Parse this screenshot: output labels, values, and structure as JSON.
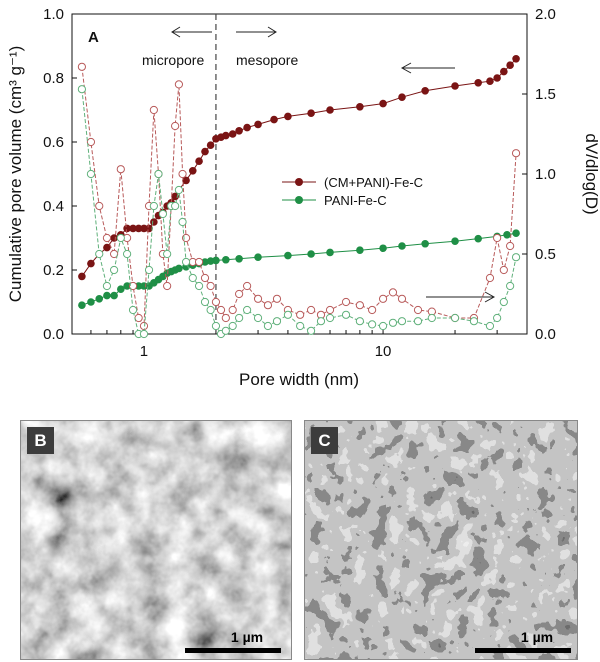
{
  "colors": {
    "series1": "#7a1414",
    "series2": "#1f8f46",
    "series1_open": "#b85a5a",
    "series2_open": "#5fb07a"
  },
  "chart_data": {
    "type": "scatter",
    "panel_label": "A",
    "xlabel": "Pore width (nm)",
    "ylabel": "Cumulative pore volume (cm³ g⁻¹)",
    "ylabel_right": "dV/dlog(D)",
    "x_scale": "log",
    "xlim": [
      0.5,
      40
    ],
    "ylim": [
      0,
      1.0
    ],
    "ylim_right": [
      0,
      2.0
    ],
    "x_ticks": [
      1,
      10
    ],
    "y_ticks": [
      "0.0",
      "0.2",
      "0.4",
      "0.6",
      "0.8",
      "1.0"
    ],
    "y_ticks_right": [
      "0.0",
      "0.5",
      "1.0",
      "1.5",
      "2.0"
    ],
    "region_divider_x": 2.0,
    "region_labels": {
      "left": "micropore",
      "right": "mesopore"
    },
    "legend_position": "center-right",
    "series": [
      {
        "name": "(CM+PANI)-Fe-C",
        "axis": "left",
        "marker": "filled",
        "x": [
          0.55,
          0.6,
          0.65,
          0.7,
          0.75,
          0.8,
          0.85,
          0.9,
          0.95,
          1.0,
          1.05,
          1.1,
          1.15,
          1.2,
          1.25,
          1.3,
          1.35,
          1.4,
          1.5,
          1.6,
          1.7,
          1.8,
          1.9,
          2.0,
          2.1,
          2.2,
          2.35,
          2.5,
          2.7,
          3.0,
          3.5,
          4.0,
          5.0,
          6.0,
          8.0,
          10.0,
          12.0,
          15.0,
          20.0,
          25.0,
          28.0,
          30.0,
          32.0,
          34.0,
          36.0
        ],
        "y": [
          0.18,
          0.22,
          0.25,
          0.27,
          0.3,
          0.31,
          0.33,
          0.33,
          0.33,
          0.33,
          0.33,
          0.35,
          0.37,
          0.38,
          0.4,
          0.41,
          0.43,
          0.45,
          0.48,
          0.51,
          0.54,
          0.57,
          0.59,
          0.61,
          0.615,
          0.62,
          0.625,
          0.635,
          0.645,
          0.655,
          0.67,
          0.68,
          0.69,
          0.7,
          0.71,
          0.72,
          0.74,
          0.76,
          0.775,
          0.785,
          0.79,
          0.8,
          0.82,
          0.84,
          0.86
        ]
      },
      {
        "name": "PANI-Fe-C",
        "axis": "left",
        "marker": "filled",
        "x": [
          0.55,
          0.6,
          0.65,
          0.7,
          0.75,
          0.8,
          0.85,
          0.9,
          0.95,
          1.0,
          1.05,
          1.1,
          1.15,
          1.2,
          1.25,
          1.3,
          1.35,
          1.4,
          1.5,
          1.6,
          1.7,
          1.8,
          1.9,
          2.0,
          2.2,
          2.5,
          3.0,
          4.0,
          5.0,
          6.0,
          8.0,
          10.0,
          12.0,
          15.0,
          20.0,
          25.0,
          30.0,
          33.0,
          36.0
        ],
        "y": [
          0.09,
          0.1,
          0.11,
          0.12,
          0.12,
          0.14,
          0.15,
          0.15,
          0.15,
          0.15,
          0.15,
          0.16,
          0.17,
          0.18,
          0.19,
          0.195,
          0.2,
          0.205,
          0.21,
          0.215,
          0.22,
          0.225,
          0.228,
          0.23,
          0.232,
          0.235,
          0.24,
          0.245,
          0.25,
          0.255,
          0.262,
          0.268,
          0.275,
          0.282,
          0.29,
          0.298,
          0.305,
          0.31,
          0.315
        ]
      },
      {
        "name": "(CM+PANI)-Fe-C dV/dlog(D)",
        "axis": "right",
        "marker": "open",
        "x": [
          0.55,
          0.6,
          0.65,
          0.7,
          0.75,
          0.8,
          0.85,
          0.9,
          0.95,
          1.0,
          1.05,
          1.1,
          1.15,
          1.2,
          1.25,
          1.3,
          1.35,
          1.4,
          1.45,
          1.5,
          1.6,
          1.7,
          1.8,
          1.9,
          2.0,
          2.1,
          2.2,
          2.35,
          2.5,
          2.7,
          3.0,
          3.3,
          3.6,
          4.0,
          4.5,
          5.0,
          5.5,
          6.0,
          7.0,
          8.0,
          9.0,
          10.0,
          11.0,
          12.0,
          14.0,
          16.0,
          20.0,
          24.0,
          28.0,
          30.0,
          32.0,
          34.0,
          36.0
        ],
        "y": [
          1.67,
          1.2,
          0.8,
          0.6,
          0.5,
          1.03,
          0.6,
          0.3,
          0.1,
          0.05,
          0.8,
          1.4,
          1.0,
          0.5,
          0.3,
          0.8,
          1.3,
          1.56,
          1.0,
          0.6,
          0.45,
          0.45,
          0.35,
          0.3,
          0.2,
          0.15,
          0.1,
          0.15,
          0.25,
          0.3,
          0.22,
          0.18,
          0.22,
          0.15,
          0.12,
          0.15,
          0.12,
          0.15,
          0.2,
          0.18,
          0.15,
          0.22,
          0.26,
          0.22,
          0.15,
          0.14,
          0.1,
          0.1,
          0.35,
          0.6,
          0.4,
          0.55,
          1.13
        ]
      },
      {
        "name": "PANI-Fe-C dV/dlog(D)",
        "axis": "right",
        "marker": "open",
        "x": [
          0.55,
          0.6,
          0.65,
          0.7,
          0.75,
          0.8,
          0.85,
          0.9,
          0.95,
          1.0,
          1.05,
          1.1,
          1.15,
          1.2,
          1.25,
          1.3,
          1.35,
          1.4,
          1.45,
          1.5,
          1.6,
          1.7,
          1.8,
          1.9,
          2.0,
          2.1,
          2.2,
          2.35,
          2.5,
          2.7,
          3.0,
          3.3,
          3.6,
          4.0,
          4.5,
          5.0,
          5.5,
          6.0,
          7.0,
          8.0,
          9.0,
          10.0,
          11.0,
          12.0,
          14.0,
          16.0,
          20.0,
          24.0,
          28.0,
          30.0,
          32.0,
          34.0,
          36.0
        ],
        "y": [
          1.53,
          1.0,
          0.5,
          0.3,
          0.4,
          0.6,
          0.5,
          0.15,
          0.0,
          0.0,
          0.4,
          0.8,
          1.0,
          0.75,
          0.5,
          0.8,
          0.8,
          0.9,
          0.7,
          0.45,
          0.35,
          0.3,
          0.2,
          0.15,
          0.05,
          0.0,
          0.02,
          0.05,
          0.1,
          0.15,
          0.1,
          0.05,
          0.08,
          0.12,
          0.05,
          0.02,
          0.08,
          0.1,
          0.12,
          0.08,
          0.06,
          0.05,
          0.07,
          0.08,
          0.08,
          0.1,
          0.1,
          0.08,
          0.05,
          0.1,
          0.2,
          0.3,
          0.48
        ]
      }
    ]
  },
  "panels": {
    "b": {
      "label": "B",
      "scale": "1 µm"
    },
    "c": {
      "label": "C",
      "scale": "1 µm"
    }
  }
}
